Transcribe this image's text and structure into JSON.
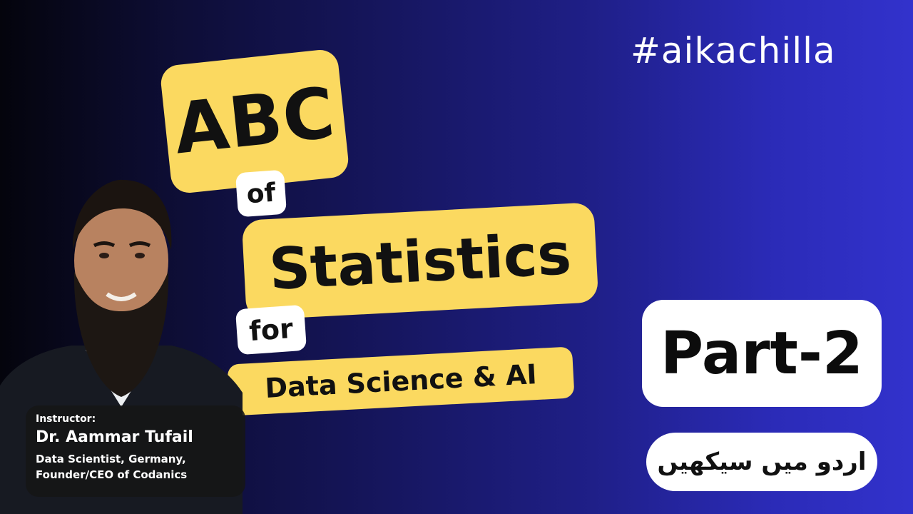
{
  "hashtag": "#aikachilla",
  "title": {
    "abc": "ABC",
    "of": "of",
    "subject": "Statistics",
    "for": "for",
    "topic": "Data Science & AI"
  },
  "part": "Part-2",
  "language_note": "اردو میں سیکھیں",
  "instructor": {
    "label": "Instructor:",
    "name": "Dr. Aammar Tufail",
    "role_line1": "Data Scientist, Germany,",
    "role_line2": "Founder/CEO of Codanics"
  },
  "colors": {
    "accent_yellow": "#fbd960",
    "background_dark": "#04040c",
    "background_blue": "#3232cc"
  }
}
